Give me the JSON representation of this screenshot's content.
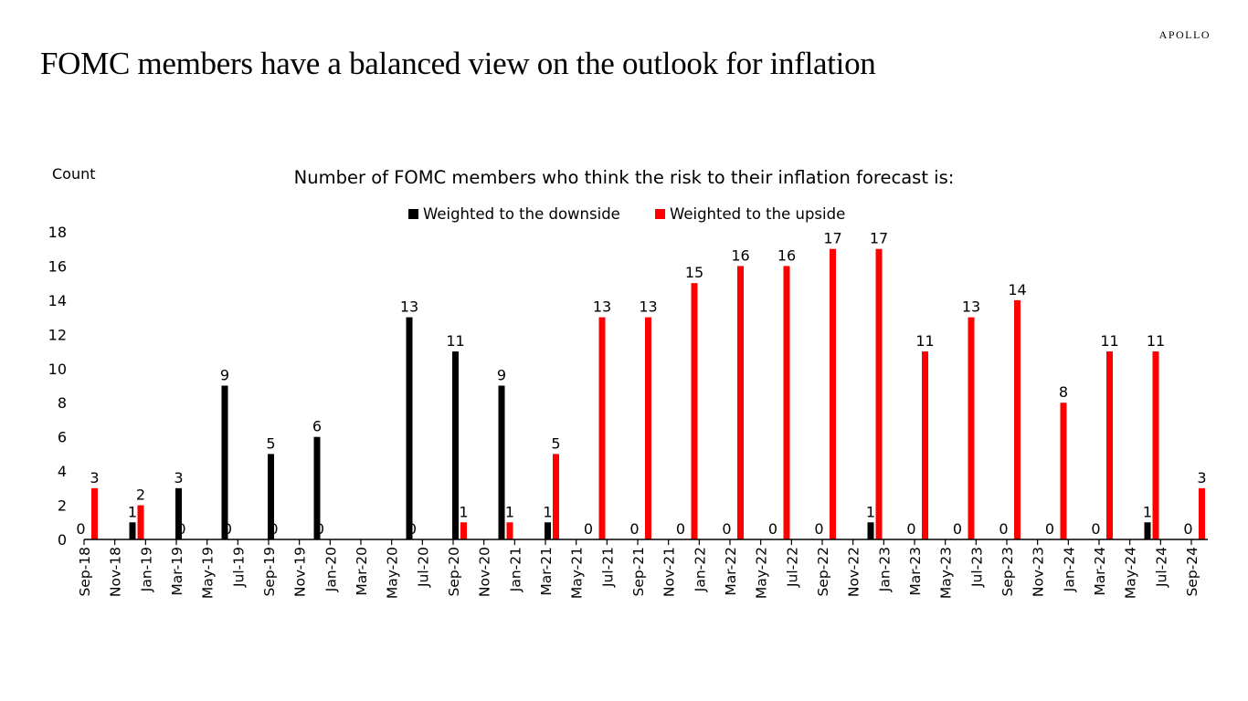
{
  "brand": "APOLLO",
  "page_title": "FOMC members have a balanced view on the outlook for inflation",
  "chart_data": {
    "type": "bar",
    "title": "Number of FOMC members who think the risk to their inflation forecast is:",
    "ylabel": "Count",
    "xlabel": "",
    "ylim": [
      0,
      18
    ],
    "yticks": [
      0,
      2,
      4,
      6,
      8,
      10,
      12,
      14,
      16,
      18
    ],
    "grid": false,
    "legend_position": "top-center",
    "xtick_labels": [
      "Sep-18",
      "Nov-18",
      "Jan-19",
      "Mar-19",
      "May-19",
      "Jul-19",
      "Sep-19",
      "Nov-19",
      "Jan-20",
      "Mar-20",
      "May-20",
      "Jul-20",
      "Sep-20",
      "Nov-20",
      "Jan-21",
      "Mar-21",
      "May-21",
      "Jul-21",
      "Sep-21",
      "Nov-21",
      "Jan-22",
      "Mar-22",
      "May-22",
      "Jul-22",
      "Sep-22",
      "Nov-22",
      "Jan-23",
      "Mar-23",
      "May-23",
      "Jul-23",
      "Sep-23",
      "Nov-23",
      "Jan-24",
      "Mar-24",
      "May-24",
      "Jul-24",
      "Sep-24"
    ],
    "categories": [
      "Sep-18",
      "Dec-18",
      "Mar-19",
      "Jun-19",
      "Sep-19",
      "Dec-19",
      "Jun-20",
      "Sep-20",
      "Dec-20",
      "Mar-21",
      "Jun-21",
      "Sep-21",
      "Dec-21",
      "Mar-22",
      "Jun-22",
      "Sep-22",
      "Dec-22",
      "Mar-23",
      "Jun-23",
      "Sep-23",
      "Dec-23",
      "Mar-24",
      "Jun-24",
      "Sep-24"
    ],
    "category_month_index": [
      0,
      3,
      6,
      9,
      12,
      15,
      21,
      24,
      27,
      30,
      33,
      36,
      39,
      42,
      45,
      48,
      51,
      54,
      57,
      60,
      63,
      66,
      69,
      72
    ],
    "series": [
      {
        "name": "Weighted to the downside",
        "color": "#000000",
        "values": [
          0,
          1,
          3,
          9,
          5,
          6,
          13,
          11,
          9,
          1,
          0,
          0,
          0,
          0,
          0,
          0,
          1,
          0,
          0,
          0,
          0,
          0,
          1,
          0
        ]
      },
      {
        "name": "Weighted to the upside",
        "color": "#ff0000",
        "values": [
          3,
          2,
          0,
          0,
          0,
          0,
          0,
          1,
          1,
          5,
          13,
          13,
          15,
          16,
          16,
          17,
          17,
          11,
          13,
          14,
          8,
          11,
          11,
          3
        ]
      }
    ]
  }
}
